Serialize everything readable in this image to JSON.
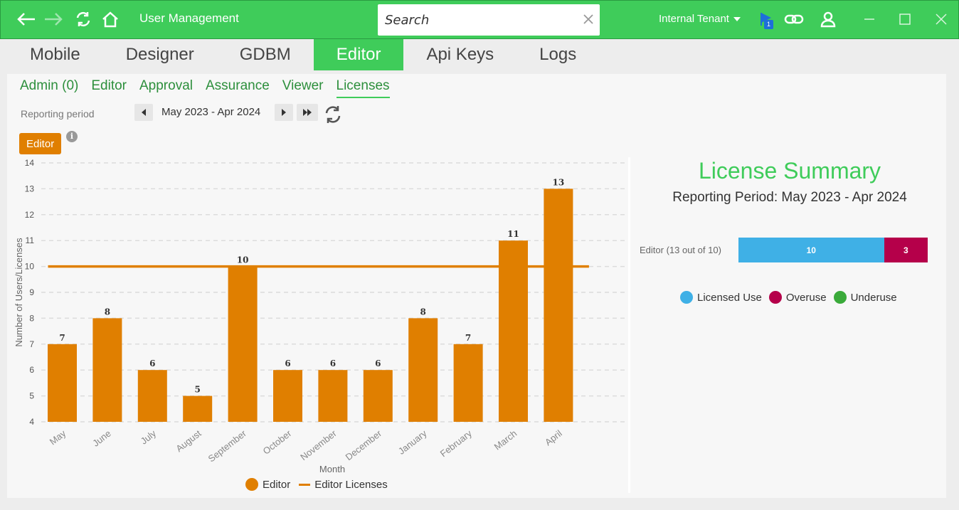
{
  "titlebar": {
    "title": "User Management",
    "search_placeholder": "Search",
    "tenant": "Internal Tenant",
    "notification_count": "1",
    "icons": [
      "back-arrow-icon",
      "forward-arrow-icon",
      "refresh-icon",
      "home-icon",
      "flag-icon",
      "link-icon",
      "user-icon",
      "minimize-icon",
      "maximize-icon",
      "close-icon"
    ]
  },
  "main_tabs": [
    "Mobile",
    "Designer",
    "GDBM",
    "Editor",
    "Api Keys",
    "Logs"
  ],
  "active_main_tab": "Editor",
  "sub_tabs": [
    "Admin (0)",
    "Editor",
    "Approval",
    "Assurance",
    "Viewer",
    "Licenses"
  ],
  "active_sub_tab": "Licenses",
  "reporting": {
    "label": "Reporting period",
    "value": "May 2023 - Apr 2024"
  },
  "role_button": "Editor",
  "colors": {
    "accent": "#3fcc5a",
    "bar": "#e07f00",
    "licensed_use": "#3fb0e6",
    "overuse": "#b5004a",
    "underuse": "#3aaa3a"
  },
  "chart_data": {
    "type": "bar",
    "categories": [
      "May",
      "June",
      "July",
      "August",
      "September",
      "October",
      "November",
      "December",
      "January",
      "February",
      "March",
      "April"
    ],
    "series": [
      {
        "name": "Editor",
        "type": "bar",
        "values": [
          7,
          8,
          6,
          5,
          10,
          6,
          6,
          6,
          8,
          7,
          11,
          13
        ]
      },
      {
        "name": "Editor Licenses",
        "type": "line",
        "values": [
          10,
          10,
          10,
          10,
          10,
          10,
          10,
          10,
          10,
          10,
          10,
          10
        ]
      }
    ],
    "xlabel": "Month",
    "ylabel": "Number of Users/Licenses",
    "ylim": [
      4,
      14
    ],
    "yticks": [
      4,
      5,
      6,
      7,
      8,
      9,
      10,
      11,
      12,
      13,
      14
    ],
    "grid": true,
    "legend": "bottom"
  },
  "summary": {
    "title": "License Summary",
    "subtitle": "Reporting Period: May 2023 - Apr 2024",
    "row_label": "Editor (13 out of 10)",
    "licensed_use": 10,
    "overuse": 3,
    "legend": [
      "Licensed Use",
      "Overuse",
      "Underuse"
    ]
  }
}
